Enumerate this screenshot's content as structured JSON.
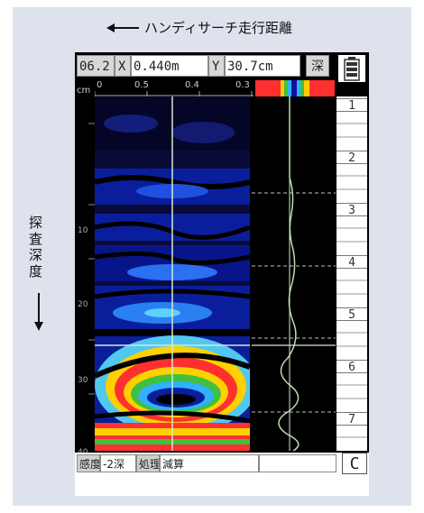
{
  "top_caption": "ハンディサーチ走行距離",
  "side_caption": [
    "探",
    "査",
    "深",
    "度"
  ],
  "header": {
    "field1": "06.2",
    "x_label": "X",
    "x_value": "0.440m",
    "y_label": "Y",
    "y_value": "30.7cm",
    "depth_button": "深"
  },
  "scale": {
    "unit": "cm",
    "labels": [
      "0",
      "0.5",
      "0.4",
      "0.3"
    ]
  },
  "depth_labels": [
    "10",
    "20",
    "30",
    "40"
  ],
  "right_column": [
    "1",
    "2",
    "3",
    "4",
    "5",
    "6",
    "7"
  ],
  "footer": {
    "sensitivity_label": "感度",
    "sensitivity_value": "-2深",
    "process_label": "処理",
    "process_value": "減算",
    "empty_field": "",
    "clear_button": "C"
  },
  "colors": {
    "panel": "#dde2ec",
    "radar_blue": "#0a1e9c",
    "cursor": "#d8e8d0"
  }
}
